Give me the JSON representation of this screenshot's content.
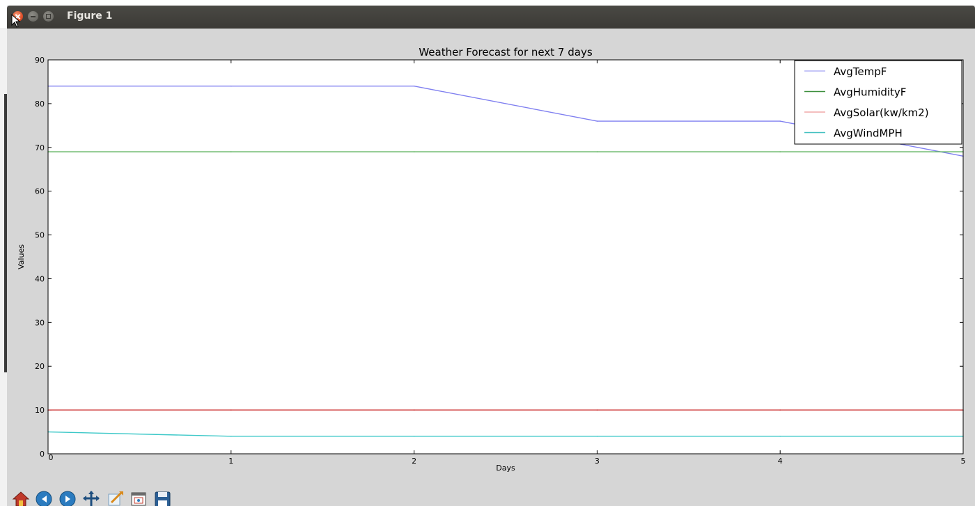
{
  "window": {
    "title": "Figure 1",
    "buttons": [
      "close",
      "minimize",
      "maximize"
    ]
  },
  "toolbar": {
    "items": [
      {
        "icon": "home-icon"
      },
      {
        "icon": "back-icon"
      },
      {
        "icon": "forward-icon"
      },
      {
        "icon": "pan-icon"
      },
      {
        "icon": "zoom-icon"
      },
      {
        "icon": "configure-subplots-icon"
      },
      {
        "icon": "save-icon"
      }
    ]
  },
  "chart_data": {
    "type": "line",
    "title": "Weather Forecast for next 7 days",
    "xlabel": "Days",
    "ylabel": "Values",
    "xlim": [
      0,
      5
    ],
    "ylim": [
      0,
      90
    ],
    "xticks": [
      "0",
      "1",
      "2",
      "3",
      "4",
      "5"
    ],
    "yticks": [
      "0",
      "10",
      "20",
      "30",
      "40",
      "50",
      "60",
      "70",
      "80",
      "90"
    ],
    "grid": false,
    "legend_position": "top-right",
    "x": [
      0,
      1,
      2,
      3,
      4,
      5
    ],
    "series": [
      {
        "name": "AvgTempF",
        "color": "#7f7ff0",
        "values": [
          84,
          84,
          84,
          76,
          76,
          68
        ]
      },
      {
        "name": "AvgHumidityF",
        "color": "#5fb35f",
        "values": [
          69,
          69,
          69,
          69,
          69,
          69
        ]
      },
      {
        "name": "AvgSolar(kw/km2)",
        "color": "#d04040",
        "values": [
          10,
          10,
          10,
          10,
          10,
          10
        ]
      },
      {
        "name": "AvgWindMPH",
        "color": "#3cc8c8",
        "values": [
          5,
          4,
          4,
          4,
          4,
          4
        ]
      }
    ],
    "legend_colors": [
      "#b3b3f5",
      "#3d8f3d",
      "#f0a8a8",
      "#40bfbf"
    ]
  }
}
